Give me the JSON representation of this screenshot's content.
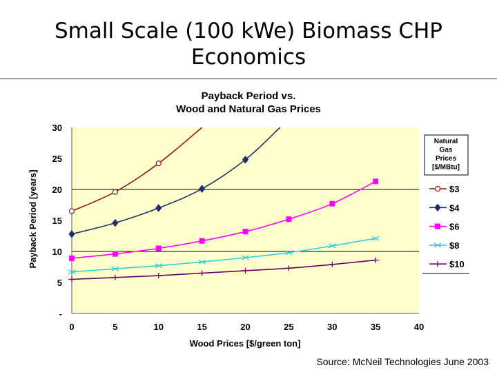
{
  "slide": {
    "title_line1": "Small Scale (100 kWe) Biomass CHP",
    "title_line2": "Economics",
    "source": "Source: McNeil Technologies June 2003"
  },
  "chart_data": {
    "type": "line",
    "title_line1": "Payback Period vs.",
    "title_line2": "Wood and Natural Gas Prices",
    "xlabel": "Wood Prices [$/green ton]",
    "ylabel": "Payback Period [years]",
    "xlim": [
      0,
      40
    ],
    "ylim": [
      0,
      30
    ],
    "x_ticks": [
      "0",
      "5",
      "10",
      "15",
      "20",
      "25",
      "30",
      "35",
      "40"
    ],
    "y_ticks": [
      "-",
      "5",
      "10",
      "15",
      "20",
      "25",
      "30"
    ],
    "plot_background": "#FFFFCC",
    "grid": "horizontal lines at 10 and 20",
    "legend": {
      "placement": "right",
      "title_lines": [
        "Natural",
        "Gas",
        "Prices",
        "[$/MBtu]"
      ]
    },
    "series": [
      {
        "name": "$3",
        "color": "#8B1A1A",
        "marker": "circle-open",
        "points": [
          [
            0,
            16.5
          ],
          [
            5,
            19.6
          ],
          [
            10,
            24.2
          ]
        ],
        "curve_extends_to": [
          15,
          30
        ]
      },
      {
        "name": "$4",
        "color": "#1F2F6F",
        "marker": "diamond",
        "points": [
          [
            0,
            12.8
          ],
          [
            5,
            14.6
          ],
          [
            10,
            17.0
          ],
          [
            15,
            20.1
          ],
          [
            20,
            24.8
          ]
        ],
        "curve_extends_to": [
          24,
          30
        ]
      },
      {
        "name": "$6",
        "color": "#FF00FF",
        "marker": "square",
        "points": [
          [
            0,
            8.9
          ],
          [
            5,
            9.6
          ],
          [
            10,
            10.5
          ],
          [
            15,
            11.7
          ],
          [
            20,
            13.2
          ],
          [
            25,
            15.2
          ],
          [
            30,
            17.7
          ],
          [
            35,
            21.3
          ]
        ]
      },
      {
        "name": "$8",
        "color": "#33CCDD",
        "marker": "x",
        "points": [
          [
            0,
            6.7
          ],
          [
            5,
            7.2
          ],
          [
            10,
            7.7
          ],
          [
            15,
            8.3
          ],
          [
            20,
            9.0
          ],
          [
            25,
            9.8
          ],
          [
            30,
            10.9
          ],
          [
            35,
            12.1
          ]
        ]
      },
      {
        "name": "$10",
        "color": "#660066",
        "marker": "plus",
        "points": [
          [
            0,
            5.5
          ],
          [
            5,
            5.8
          ],
          [
            10,
            6.1
          ],
          [
            15,
            6.5
          ],
          [
            20,
            6.9
          ],
          [
            25,
            7.3
          ],
          [
            30,
            7.9
          ],
          [
            35,
            8.6
          ]
        ]
      }
    ]
  }
}
